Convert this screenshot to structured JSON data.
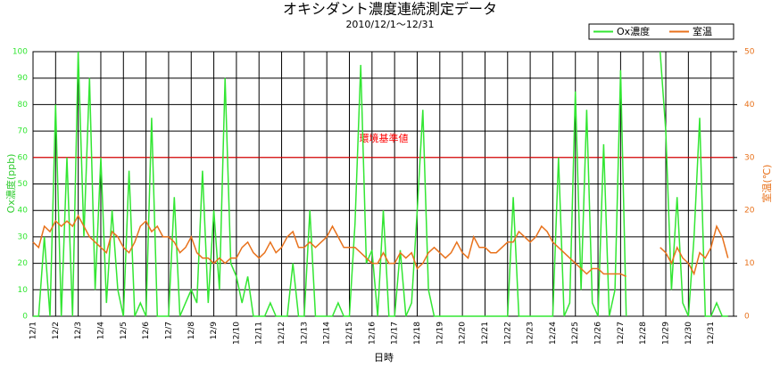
{
  "chart_data": {
    "type": "line",
    "title": "オキシダント濃度連続測定データ",
    "subtitle": "2010/12/1～12/31",
    "x_label": "日時",
    "y_label": "Ox濃度(ppb)",
    "y2_label": "室温(℃)",
    "x": [
      0,
      0.25,
      0.5,
      0.75,
      1,
      1.25,
      1.5,
      1.75,
      2,
      2.25,
      2.5,
      2.75,
      3,
      3.25,
      3.5,
      3.75,
      4,
      4.25,
      4.5,
      4.75,
      5,
      5.25,
      5.5,
      5.75,
      6,
      6.25,
      6.5,
      6.75,
      7,
      7.25,
      7.5,
      7.75,
      8,
      8.25,
      8.5,
      8.75,
      9,
      9.25,
      9.5,
      9.75,
      10,
      10.25,
      10.5,
      10.75,
      11,
      11.25,
      11.5,
      11.75,
      12,
      12.25,
      12.5,
      12.75,
      13,
      13.25,
      13.5,
      13.75,
      14,
      14.25,
      14.5,
      14.75,
      15,
      15.25,
      15.5,
      15.75,
      16,
      16.25,
      16.5,
      16.75,
      17,
      17.25,
      17.5,
      17.75,
      18,
      18.25,
      18.5,
      18.75,
      19,
      19.25,
      19.5,
      19.75,
      20,
      20.25,
      20.5,
      20.75,
      21,
      21.25,
      21.5,
      21.75,
      22,
      22.25,
      22.5,
      22.75,
      23,
      23.25,
      23.5,
      23.75,
      24,
      24.25,
      24.5,
      24.75,
      25,
      25.25,
      25.5,
      25.75,
      26,
      26.25,
      26.5,
      26.75,
      27,
      27.25,
      27.5,
      27.75,
      28,
      28.25,
      28.5,
      28.75,
      29,
      29.25,
      29.5,
      29.75,
      30,
      30.25,
      30.5,
      30.75
    ],
    "xlim": [
      0,
      31
    ],
    "xticks": [
      {
        "value": 0,
        "label": "12/1"
      },
      {
        "value": 1,
        "label": "12/2"
      },
      {
        "value": 2,
        "label": "12/3"
      },
      {
        "value": 3,
        "label": "12/4"
      },
      {
        "value": 4,
        "label": "12/5"
      },
      {
        "value": 5,
        "label": "12/6"
      },
      {
        "value": 6,
        "label": "12/7"
      },
      {
        "value": 7,
        "label": "12/8"
      },
      {
        "value": 8,
        "label": "12/9"
      },
      {
        "value": 9,
        "label": "12/10"
      },
      {
        "value": 10,
        "label": "12/11"
      },
      {
        "value": 11,
        "label": "12/12"
      },
      {
        "value": 12,
        "label": "12/13"
      },
      {
        "value": 13,
        "label": "12/14"
      },
      {
        "value": 14,
        "label": "12/15"
      },
      {
        "value": 15,
        "label": "12/16"
      },
      {
        "value": 16,
        "label": "12/17"
      },
      {
        "value": 17,
        "label": "12/18"
      },
      {
        "value": 18,
        "label": "12/19"
      },
      {
        "value": 19,
        "label": "12/20"
      },
      {
        "value": 20,
        "label": "12/21"
      },
      {
        "value": 21,
        "label": "12/22"
      },
      {
        "value": 22,
        "label": "12/23"
      },
      {
        "value": 23,
        "label": "12/24"
      },
      {
        "value": 24,
        "label": "12/25"
      },
      {
        "value": 25,
        "label": "12/26"
      },
      {
        "value": 26,
        "label": "12/27"
      },
      {
        "value": 27,
        "label": "12/28"
      },
      {
        "value": 28,
        "label": "12/29"
      },
      {
        "value": 29,
        "label": "12/30"
      },
      {
        "value": 30,
        "label": "12/31"
      }
    ],
    "ylim": [
      0,
      100
    ],
    "yticks": [
      0,
      10,
      20,
      30,
      40,
      50,
      60,
      70,
      80,
      90,
      100
    ],
    "y2lim": [
      0,
      50
    ],
    "y2ticks": [
      0,
      10,
      20,
      30,
      40,
      50
    ],
    "grid": true,
    "legend": "top-right",
    "reference_line": {
      "value": 60,
      "label": "環境基準値",
      "color": "#ff0000"
    },
    "series": [
      {
        "name": "Ox濃度",
        "color": "#33e633",
        "values": [
          0,
          0,
          30,
          0,
          80,
          0,
          60,
          0,
          100,
          30,
          90,
          10,
          60,
          5,
          40,
          10,
          0,
          55,
          0,
          5,
          0,
          75,
          0,
          0,
          0,
          45,
          0,
          5,
          10,
          5,
          55,
          5,
          40,
          10,
          90,
          20,
          15,
          5,
          15,
          0,
          0,
          0,
          5,
          0,
          0,
          0,
          20,
          0,
          0,
          40,
          0,
          0,
          0,
          0,
          5,
          0,
          0,
          35,
          95,
          20,
          25,
          0,
          40,
          0,
          0,
          25,
          0,
          5,
          40,
          78,
          10,
          0,
          0,
          0,
          0,
          0,
          0,
          0,
          0,
          0,
          0,
          0,
          0,
          0,
          0,
          45,
          0,
          0,
          0,
          0,
          0,
          0,
          0,
          60,
          0,
          5,
          85,
          10,
          78,
          5,
          0,
          65,
          0,
          10,
          93,
          0,
          null,
          null,
          null,
          null,
          null,
          100,
          70,
          10,
          45,
          5,
          0,
          30,
          75,
          0,
          0,
          5,
          0,
          0
        ]
      },
      {
        "name": "室温",
        "color": "#e8721c",
        "axis": "y2",
        "values": [
          14,
          13,
          17,
          16,
          18,
          17,
          18,
          17,
          19,
          17,
          15,
          14,
          13,
          12,
          16,
          15,
          13,
          12,
          14,
          17,
          18,
          16,
          17,
          15,
          15,
          14,
          12,
          13,
          15,
          12,
          11,
          11,
          10,
          11,
          10,
          11,
          11,
          13,
          14,
          12,
          11,
          12,
          14,
          12,
          13,
          15,
          16,
          13,
          13,
          14,
          13,
          14,
          15,
          17,
          15,
          13,
          13,
          13,
          12,
          11,
          10,
          10,
          12,
          10,
          10,
          12,
          11,
          12,
          9,
          10,
          12,
          13,
          12,
          11,
          12,
          14,
          12,
          11,
          15,
          13,
          13,
          12,
          12,
          13,
          14,
          14,
          16,
          15,
          14,
          15,
          17,
          16,
          14,
          13,
          12,
          11,
          10,
          9,
          8,
          9,
          9,
          8,
          8,
          8,
          8,
          7.5,
          null,
          null,
          null,
          null,
          null,
          13,
          12,
          10,
          13,
          11,
          10,
          8,
          12,
          11,
          13,
          17,
          15,
          11
        ]
      }
    ]
  }
}
